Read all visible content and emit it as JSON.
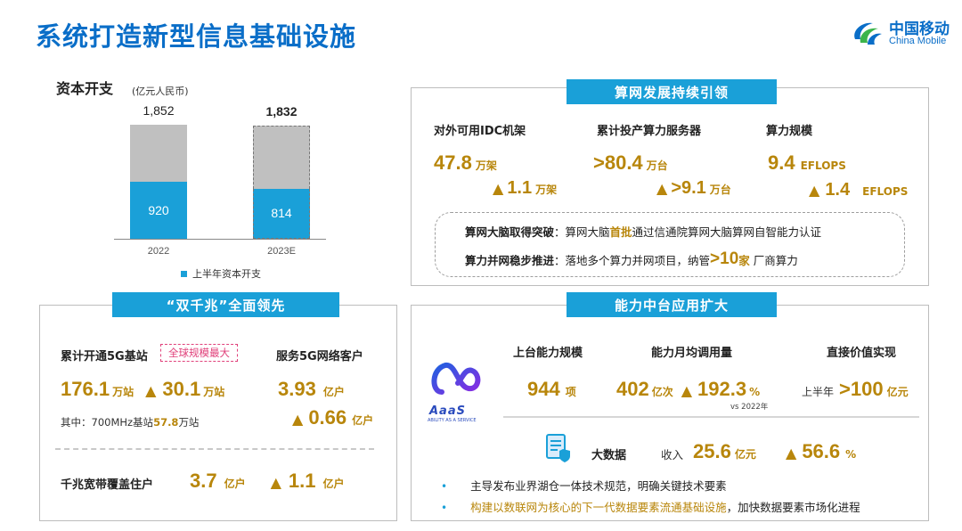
{
  "title": "系统打造新型信息基础设施",
  "logo": {
    "cn": "中国移动",
    "en": "China Mobile"
  },
  "capex": {
    "heading": "资本开支",
    "unit": "(亿元人民币)",
    "legend": "上半年资本开支",
    "chart_data": {
      "type": "bar",
      "categories": [
        "2022",
        "2023E"
      ],
      "series": [
        {
          "name": "上半年资本开支",
          "values": [
            920,
            814
          ]
        }
      ],
      "totals": [
        1852,
        1832
      ],
      "total_labels": [
        "1,852",
        "1,832"
      ],
      "value_labels": [
        "920",
        "814"
      ],
      "ylim": [
        0,
        1852
      ],
      "colors": {
        "first_half": "#1aa0d8",
        "rest": "#c0c0c0"
      }
    }
  },
  "compute": {
    "title": "算网发展持续引领",
    "items": [
      {
        "label": "对外可用IDC机架",
        "value": "47.8",
        "unit": "万架",
        "delta": "1.1",
        "delta_unit": "万架"
      },
      {
        "label": "累计投产算力服务器",
        "value": ">80.4",
        "unit": "万台",
        "delta": ">9.1",
        "delta_unit": "万台"
      },
      {
        "label": "算力规模",
        "value": "9.4",
        "unit": "EFLOPS",
        "delta": "1.4",
        "delta_unit": "EFLOPS"
      }
    ],
    "note1": {
      "key": "算网大脑取得突破",
      "pre": "：算网大脑",
      "hl": "首批",
      "post": "通过信通院算网大脑算网自智能力认证"
    },
    "note2": {
      "key": "算力并网稳步推进",
      "pre": "：落地多个算力并网项目，纳管 ",
      "num": ">10",
      "unit": " 家",
      "post": "厂商算力"
    }
  },
  "gigabit": {
    "title": "“双千兆”全面领先",
    "bs_label": "累计开通5G基站",
    "badge": "全球规模最大",
    "bs_value": "176.1",
    "bs_unit": "万站",
    "bs_delta": "30.1",
    "bs_delta_unit": "万站",
    "sub_pre": "其中：700MHz基站",
    "sub_num": "57.8",
    "sub_unit": "万站",
    "cust_label": "服务5G网络客户",
    "cust_value": "3.93",
    "cust_unit": "亿户",
    "cust_delta": "0.66",
    "cust_delta_unit": "亿户",
    "bb_label": "千兆宽带覆盖住户",
    "bb_value": "3.7",
    "bb_unit": "亿户",
    "bb_delta": "1.1",
    "bb_delta_unit": "亿户"
  },
  "platform": {
    "title": "能力中台应用扩大",
    "aaas_logo": "AaaS",
    "aaas_sub": "ABILITY AS A SERVICE",
    "cols": [
      {
        "label": "上台能力规模",
        "value": "944",
        "unit": "项"
      },
      {
        "label": "能力月均调用量",
        "value": "402",
        "unit": "亿次",
        "delta": "192.3",
        "delta_unit": "%",
        "note": "vs 2022年"
      },
      {
        "label": "直接价值实现",
        "prefix": "上半年",
        "value": ">100",
        "unit": "亿元"
      }
    ],
    "bigdata": {
      "label": "大数据",
      "income": "收入",
      "value": "25.6",
      "unit": "亿元",
      "delta": "56.6",
      "delta_unit": "%"
    },
    "bullets": [
      {
        "text": "主导发布业界湖仓一体技术规范，明确关键技术要素",
        "hl": ""
      },
      {
        "text": "，加快数据要素市场化进程",
        "hl": "构建以数联网为核心的下一代数据要素流通基础设施"
      }
    ]
  }
}
